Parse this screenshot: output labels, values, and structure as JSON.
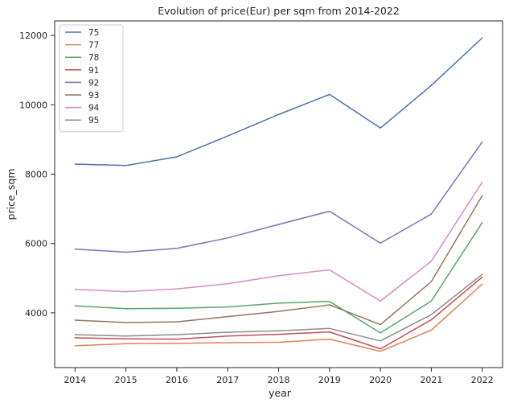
{
  "chart_data": {
    "type": "line",
    "title": "Evolution of price(Eur) per sqm from 2014-2022",
    "xlabel": "year",
    "ylabel": "price_sqm",
    "x": [
      2014,
      2015,
      2016,
      2017,
      2018,
      2019,
      2020,
      2021,
      2022
    ],
    "x_ticks": [
      "2014",
      "2015",
      "2016",
      "2017",
      "2018",
      "2019",
      "2020",
      "2021",
      "2022"
    ],
    "y_ticks": [
      4000,
      6000,
      8000,
      10000,
      12000
    ],
    "y_tick_labels": [
      "4000",
      "6000",
      "8000",
      "10000",
      "12000"
    ],
    "xlim": [
      2013.6,
      2022.4
    ],
    "ylim": [
      2420,
      12420
    ],
    "grid": false,
    "legend_position": "top-left",
    "series": [
      {
        "name": "75",
        "color": "#4c72b0",
        "values": [
          8290,
          8250,
          8500,
          9100,
          9720,
          10300,
          9330,
          10560,
          11930
        ]
      },
      {
        "name": "77",
        "color": "#dd8452",
        "values": [
          3050,
          3110,
          3120,
          3140,
          3150,
          3240,
          2890,
          3500,
          4830
        ]
      },
      {
        "name": "78",
        "color": "#55a868",
        "values": [
          4200,
          4120,
          4130,
          4170,
          4280,
          4330,
          3420,
          4340,
          6600
        ]
      },
      {
        "name": "91",
        "color": "#c44e52",
        "values": [
          3280,
          3250,
          3240,
          3330,
          3380,
          3450,
          2960,
          3800,
          5030
        ]
      },
      {
        "name": "92",
        "color": "#8172b3",
        "values": [
          5840,
          5750,
          5860,
          6160,
          6550,
          6930,
          6010,
          6850,
          8930
        ]
      },
      {
        "name": "93",
        "color": "#937860",
        "values": [
          3790,
          3720,
          3740,
          3890,
          4040,
          4230,
          3660,
          4900,
          7380
        ]
      },
      {
        "name": "94",
        "color": "#da8bc3",
        "values": [
          4680,
          4610,
          4690,
          4840,
          5070,
          5240,
          4340,
          5490,
          7770
        ]
      },
      {
        "name": "95",
        "color": "#8c8c8c",
        "values": [
          3370,
          3330,
          3370,
          3440,
          3480,
          3550,
          3190,
          3950,
          5110
        ]
      }
    ]
  }
}
